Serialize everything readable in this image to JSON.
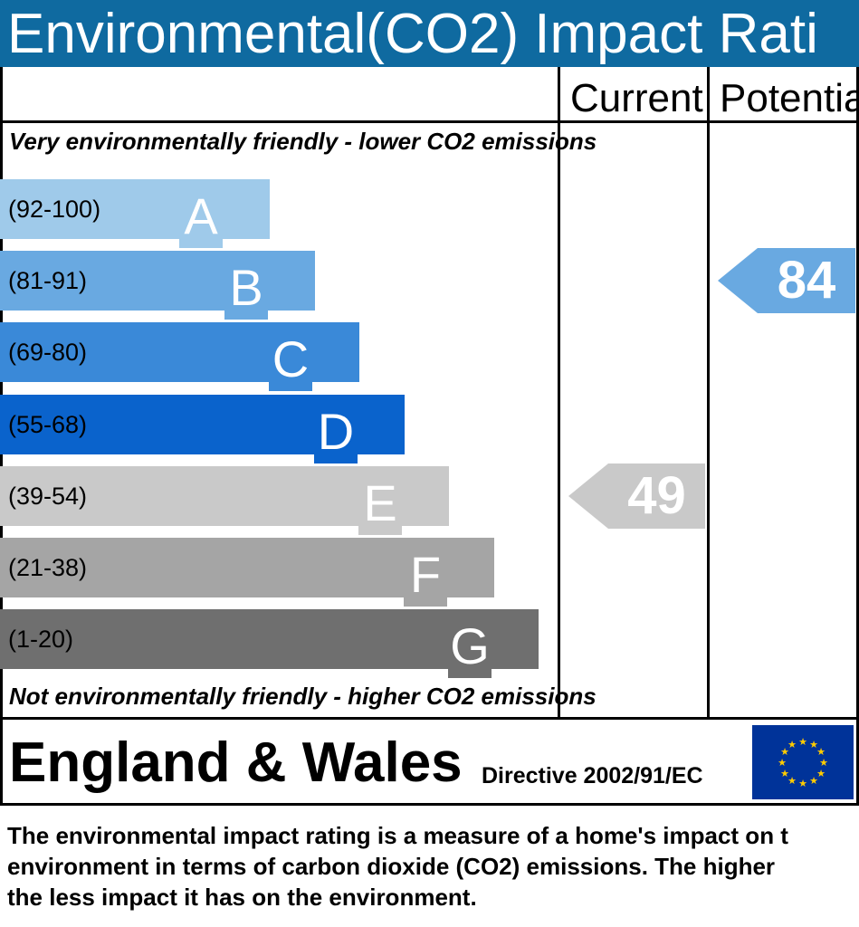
{
  "header": {
    "title": "Environmental(CO2) Impact Rati"
  },
  "columns": {
    "current": "Current",
    "potential": "Potentia"
  },
  "notes": {
    "top": "Very environmentally friendly - lower CO2 emissions",
    "bottom": "Not environmentally friendly - higher CO2 emissions"
  },
  "chart_data": {
    "type": "bar",
    "bands": [
      {
        "letter": "A",
        "range": "(92-100)",
        "color": "#9fcaea"
      },
      {
        "letter": "B",
        "range": "(81-91)",
        "color": "#69a9e1"
      },
      {
        "letter": "C",
        "range": "(69-80)",
        "color": "#3a89d8"
      },
      {
        "letter": "D",
        "range": "(55-68)",
        "color": "#0a63cc"
      },
      {
        "letter": "E",
        "range": "(39-54)",
        "color": "#c9c9c9"
      },
      {
        "letter": "F",
        "range": "(21-38)",
        "color": "#a5a5a5"
      },
      {
        "letter": "G",
        "range": "(1-20)",
        "color": "#6f6f6f"
      }
    ],
    "current": {
      "value": 49,
      "band": "E",
      "color": "#c9c9c9"
    },
    "potential": {
      "value": 84,
      "band": "B",
      "color": "#69a9e1"
    }
  },
  "footer": {
    "country": "England & Wales",
    "directive": "Directive 2002/91/EC",
    "flag": "eu-flag-icon"
  },
  "description": {
    "line1": "The environmental impact rating is a measure of a home's impact on t",
    "line2": "environment in terms of carbon dioxide (CO2) emissions. The higher",
    "line3": "the less impact it has on the environment."
  }
}
